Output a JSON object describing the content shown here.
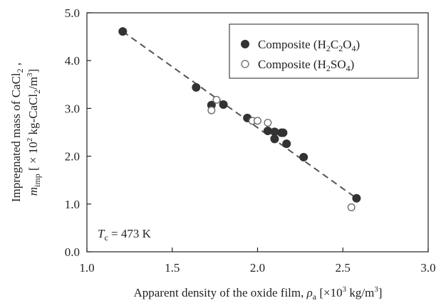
{
  "chart_data": {
    "type": "scatter",
    "xlabel": "Apparent density of the oxide film, ρa [×10³ kg/m³]",
    "ylabel_line1": "Impregnated mass of CaCl₂ ,",
    "ylabel_line2": "mimp [ × 10² kg-CaCl₂/m³]",
    "xlim": [
      1.0,
      3.0
    ],
    "ylim": [
      0.0,
      5.0
    ],
    "xticks": [
      "1.0",
      "1.5",
      "2.0",
      "2.5",
      "3.0"
    ],
    "yticks": [
      "0.0",
      "1.0",
      "2.0",
      "3.0",
      "4.0",
      "5.0"
    ],
    "annotation": "Tc = 473 K",
    "legend_position": "top-right",
    "grid": false,
    "series": [
      {
        "name": "Composite (H2C2O4)",
        "marker": "filled-circle",
        "color": "#333333",
        "points": [
          [
            1.21,
            4.61
          ],
          [
            1.64,
            3.44
          ],
          [
            1.73,
            3.07
          ],
          [
            1.8,
            3.08
          ],
          [
            1.94,
            2.8
          ],
          [
            2.06,
            2.53
          ],
          [
            2.1,
            2.51
          ],
          [
            2.1,
            2.36
          ],
          [
            2.14,
            2.49
          ],
          [
            2.15,
            2.49
          ],
          [
            2.17,
            2.26
          ],
          [
            2.27,
            1.98
          ],
          [
            2.58,
            1.12
          ]
        ]
      },
      {
        "name": "Composite (H2SO4)",
        "marker": "open-circle",
        "color": "#666666",
        "points": [
          [
            1.73,
            2.96
          ],
          [
            1.76,
            3.18
          ],
          [
            1.97,
            2.74
          ],
          [
            2.0,
            2.74
          ],
          [
            2.06,
            2.7
          ],
          [
            2.55,
            0.93
          ]
        ]
      }
    ],
    "trend_line": {
      "style": "dashed",
      "from": [
        1.21,
        4.61
      ],
      "to": [
        2.58,
        1.12
      ]
    }
  }
}
